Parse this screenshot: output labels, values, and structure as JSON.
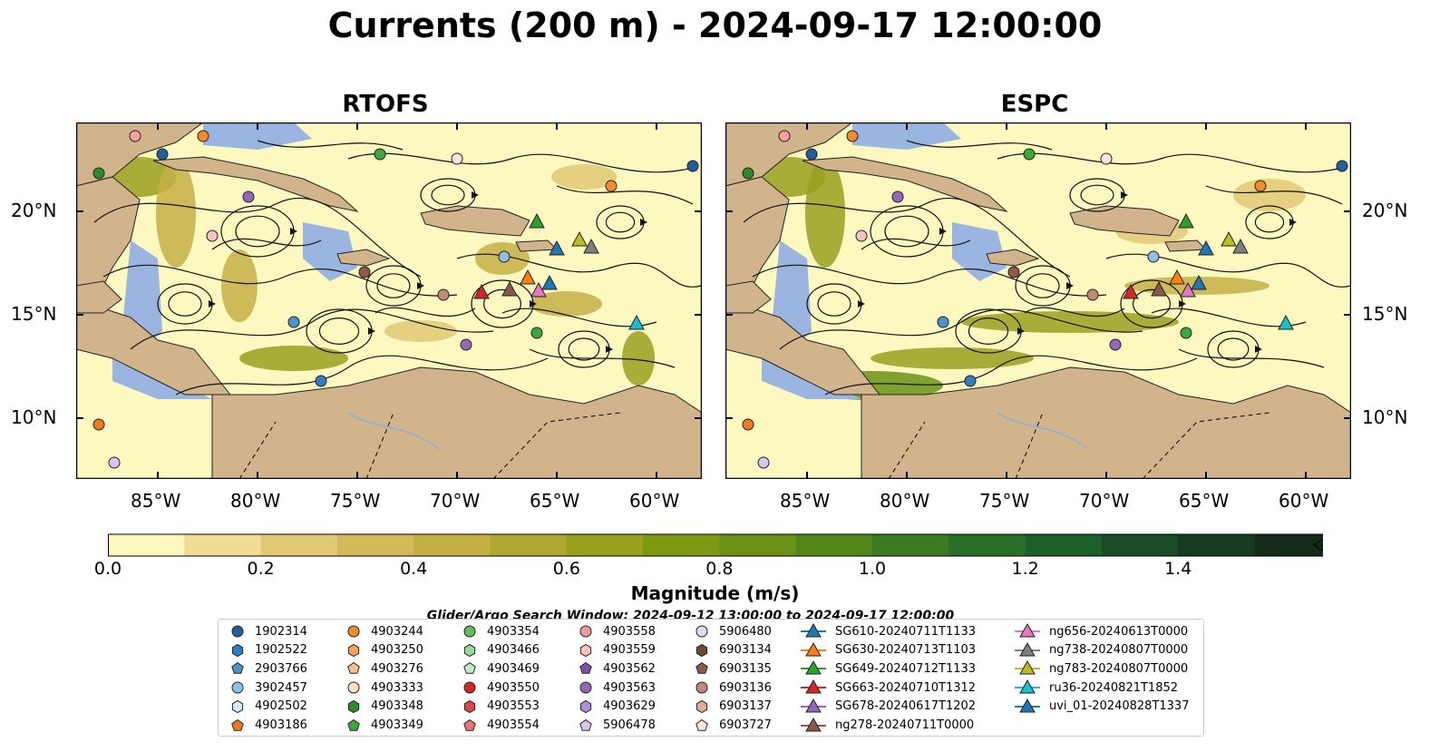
{
  "figure": {
    "title": "Currents (200 m) - 2024-09-17 12:00:00",
    "panels": [
      {
        "title": "RTOFS"
      },
      {
        "title": "ESPC"
      }
    ],
    "lon_ticks": [
      "85°W",
      "80°W",
      "75°W",
      "70°W",
      "65°W",
      "60°W"
    ],
    "lat_ticks": [
      "20°N",
      "15°N",
      "10°N"
    ]
  },
  "colorbar": {
    "label": "Magnitude (m/s)",
    "tick_labels": [
      "0.0",
      "0.2",
      "0.4",
      "0.6",
      "0.8",
      "1.0",
      "1.2",
      "1.4"
    ],
    "colors": [
      "#fdf7c0",
      "#f0dd93",
      "#e1c874",
      "#d4b95b",
      "#c4af45",
      "#b0a732",
      "#98a01e",
      "#7f9914",
      "#6a9115",
      "#53871c",
      "#3d7b22",
      "#296f27",
      "#1c5f29",
      "#184c26",
      "#163b20",
      "#142b19",
      "#10200f"
    ]
  },
  "search_window": "Glider/Argo Search Window: 2024-09-12 13:00:00 to 2024-09-17 12:00:00",
  "legend": {
    "columns": [
      [
        {
          "label": "1902314",
          "color": "#1f5f9e",
          "marker": "circle"
        },
        {
          "label": "1902522",
          "color": "#2f7ec1",
          "marker": "hexagon"
        },
        {
          "label": "2903766",
          "color": "#4b95c9",
          "marker": "pentagon"
        },
        {
          "label": "3902457",
          "color": "#8fc1e6",
          "marker": "circle"
        },
        {
          "label": "4902502",
          "color": "#d4e8f7",
          "marker": "hexagon"
        },
        {
          "label": "4903186",
          "color": "#f07a1a",
          "marker": "pentagon"
        }
      ],
      [
        {
          "label": "4903244",
          "color": "#f58a2a",
          "marker": "circle"
        },
        {
          "label": "4903250",
          "color": "#f7a35c",
          "marker": "hexagon"
        },
        {
          "label": "4903276",
          "color": "#fbc08f",
          "marker": "pentagon"
        },
        {
          "label": "4903333",
          "color": "#fde0c2",
          "marker": "circle"
        },
        {
          "label": "4903348",
          "color": "#2e8b2e",
          "marker": "hexagon"
        },
        {
          "label": "4903349",
          "color": "#3aa83a",
          "marker": "pentagon"
        }
      ],
      [
        {
          "label": "4903354",
          "color": "#5cbf5c",
          "marker": "circle"
        },
        {
          "label": "4903466",
          "color": "#9ad99a",
          "marker": "hexagon"
        },
        {
          "label": "4903469",
          "color": "#c6ecc6",
          "marker": "pentagon"
        },
        {
          "label": "4903550",
          "color": "#d62728",
          "marker": "circle"
        },
        {
          "label": "4903553",
          "color": "#e04545",
          "marker": "hexagon"
        },
        {
          "label": "4903554",
          "color": "#f07070",
          "marker": "pentagon"
        }
      ],
      [
        {
          "label": "4903558",
          "color": "#f49a9a",
          "marker": "circle"
        },
        {
          "label": "4903559",
          "color": "#f8c2c2",
          "marker": "hexagon"
        },
        {
          "label": "4903562",
          "color": "#7b52a8",
          "marker": "pentagon"
        },
        {
          "label": "4903563",
          "color": "#9467bd",
          "marker": "circle"
        },
        {
          "label": "4903629",
          "color": "#b08fd6",
          "marker": "hexagon"
        },
        {
          "label": "5906478",
          "color": "#d9c6ee",
          "marker": "pentagon"
        }
      ],
      [
        {
          "label": "5906480",
          "color": "#e6d6f5",
          "marker": "circle"
        },
        {
          "label": "6903134",
          "color": "#6b4a3a",
          "marker": "hexagon"
        },
        {
          "label": "6903135",
          "color": "#8c5a47",
          "marker": "pentagon"
        },
        {
          "label": "6903136",
          "color": "#c08a7a",
          "marker": "circle"
        },
        {
          "label": "6903137",
          "color": "#e0ab98",
          "marker": "hexagon"
        },
        {
          "label": "6903727",
          "color": "#fde4dc",
          "marker": "pentagon"
        }
      ],
      [
        {
          "label": "SG610-20240711T1133",
          "color": "#1f77b4",
          "marker": "triangle"
        },
        {
          "label": "SG630-20240713T1103",
          "color": "#ff7f0e",
          "marker": "triangle"
        },
        {
          "label": "SG649-20240712T1133",
          "color": "#2ca02c",
          "marker": "triangle"
        },
        {
          "label": "SG663-20240710T1312",
          "color": "#d62728",
          "marker": "triangle"
        },
        {
          "label": "SG678-20240617T1202",
          "color": "#9467bd",
          "marker": "triangle"
        },
        {
          "label": "ng278-20240711T0000",
          "color": "#8c564b",
          "marker": "triangle"
        }
      ],
      [
        {
          "label": "ng656-20240613T0000",
          "color": "#e377c2",
          "marker": "triangle"
        },
        {
          "label": "ng738-20240807T0000",
          "color": "#7f7f7f",
          "marker": "triangle"
        },
        {
          "label": "ng783-20240807T0000",
          "color": "#bcbd22",
          "marker": "triangle"
        },
        {
          "label": "ru36-20240821T1852",
          "color": "#17becf",
          "marker": "triangle"
        },
        {
          "label": "uvi_01-20240828T1337",
          "color": "#1f77b4",
          "marker": "triangle"
        }
      ]
    ]
  },
  "colors": {
    "land": "#d1b48c",
    "shelf": "#9ab6e0",
    "ocean_low": "#fdf7c0",
    "river": "#8aaed8"
  }
}
